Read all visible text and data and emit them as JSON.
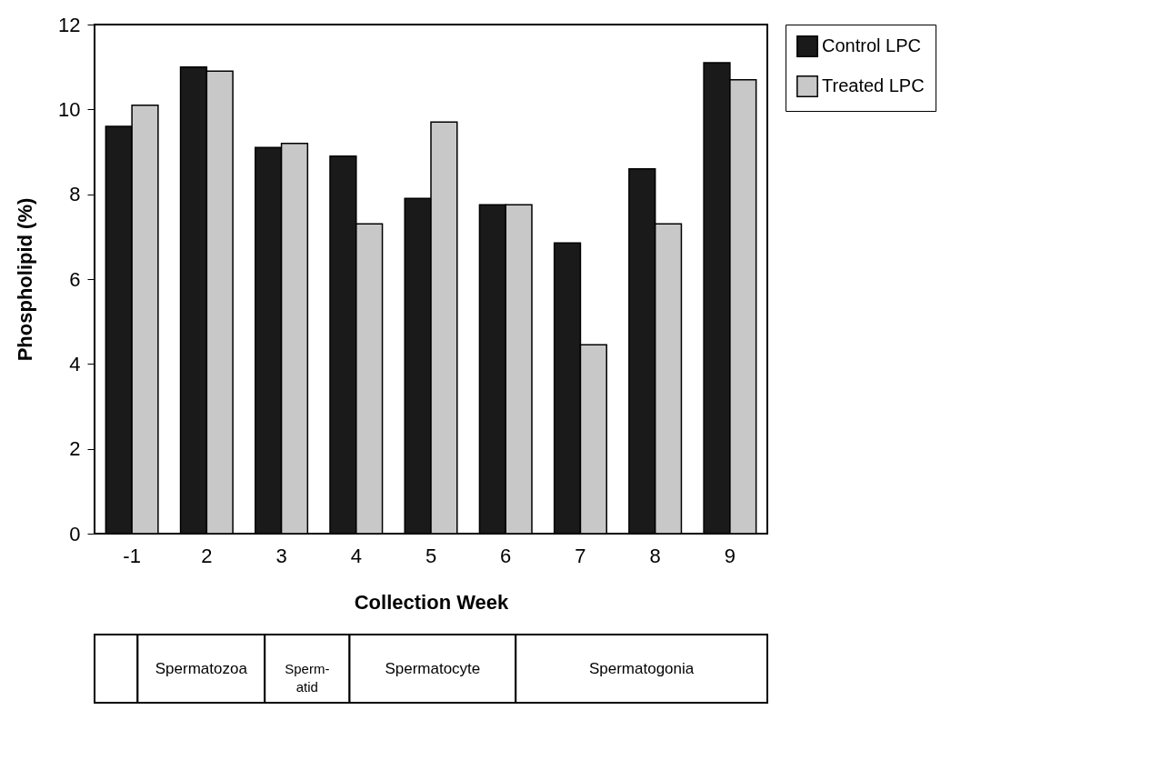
{
  "chart_data": {
    "type": "bar",
    "xlabel": "Collection Week",
    "ylabel": "Phospholipid (%)",
    "categories": [
      "-1",
      "2",
      "3",
      "4",
      "5",
      "6",
      "7",
      "8",
      "9"
    ],
    "series": [
      {
        "name": "Control LPC",
        "color": "#1a1a1a",
        "values": [
          9.6,
          11.0,
          9.1,
          8.9,
          7.9,
          7.75,
          6.85,
          8.6,
          11.1
        ]
      },
      {
        "name": "Treated LPC",
        "color": "#c8c8c8",
        "values": [
          10.1,
          10.9,
          9.2,
          7.3,
          9.7,
          7.75,
          4.45,
          7.3,
          10.7
        ]
      }
    ],
    "ylim": [
      0,
      12
    ],
    "yticks": [
      0,
      2,
      4,
      6,
      8,
      10,
      12
    ],
    "grid": false,
    "legend": "top right",
    "annotations": [
      "Spermatozoa",
      "Sperm-\natid",
      "Spermatocyte",
      "Spermatogonia"
    ]
  }
}
